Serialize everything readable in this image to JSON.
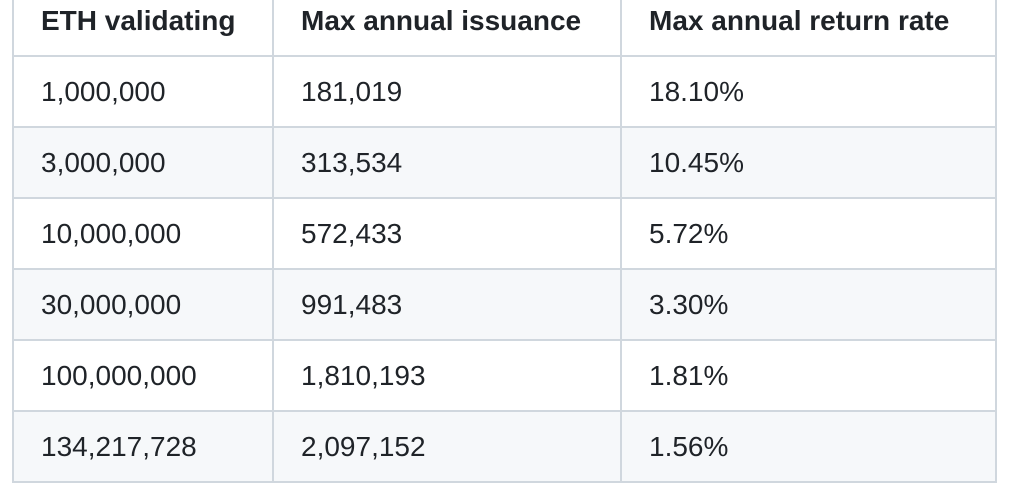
{
  "table": {
    "headers": [
      "ETH validating",
      "Max annual issuance",
      "Max annual return rate"
    ],
    "rows": [
      [
        "1,000,000",
        "181,019",
        "18.10%"
      ],
      [
        "3,000,000",
        "313,534",
        "10.45%"
      ],
      [
        "10,000,000",
        "572,433",
        "5.72%"
      ],
      [
        "30,000,000",
        "991,483",
        "3.30%"
      ],
      [
        "100,000,000",
        "1,810,193",
        "1.81%"
      ],
      [
        "134,217,728",
        "2,097,152",
        "1.56%"
      ]
    ]
  },
  "colors": {
    "border": "#d0d7de",
    "stripe": "#f6f8fa",
    "text": "#1f2328"
  }
}
